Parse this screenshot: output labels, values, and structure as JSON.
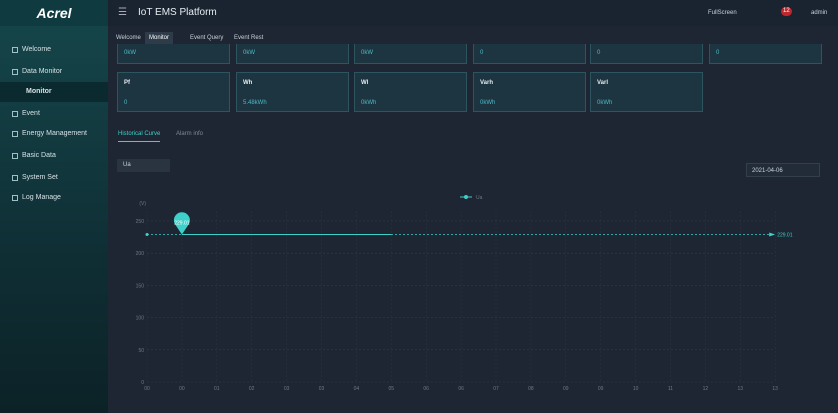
{
  "sidebar": {
    "logo": "Acrel",
    "menu": [
      "Welcome",
      "Data Monitor",
      "Monitor",
      "Event",
      "Energy Management",
      "Basic Data",
      "System Set",
      "Log Manage"
    ]
  },
  "header": {
    "title": "IoT EMS Platform",
    "fullscreen": "FullScreen",
    "badge": "12",
    "user": "admin"
  },
  "tabs": [
    "Welcome",
    "Monitor",
    "Event Query",
    "Event Rest"
  ],
  "cards_top": [
    "0kW",
    "0kW",
    "0kW",
    "0",
    "0",
    "0"
  ],
  "cards": [
    {
      "label": "Pf",
      "value": "0"
    },
    {
      "label": "Wh",
      "value": "5.48kWh"
    },
    {
      "label": "Wl",
      "value": "0kWh"
    },
    {
      "label": "Varh",
      "value": "0kWh"
    },
    {
      "label": "Varl",
      "value": "0kWh"
    }
  ],
  "panel_tabs": [
    "Historical Curve",
    "Alarm info"
  ],
  "select": "Ua",
  "date": "2021-04-06",
  "chart_data": {
    "type": "line",
    "y_label": "(V)",
    "categories": [
      "00",
      "00",
      "01",
      "02",
      "03",
      "03",
      "04",
      "05",
      "06",
      "06",
      "07",
      "08",
      "09",
      "09",
      "10",
      "11",
      "12",
      "13",
      "13"
    ],
    "series": [
      {
        "name": "Ua",
        "color": "#3fd0c9",
        "values": [
          null,
          229.01,
          229.01,
          229.01,
          229.01,
          229.01,
          229.01,
          229.01,
          null,
          null,
          null,
          null,
          null,
          null,
          null,
          null,
          null,
          null,
          null
        ]
      }
    ],
    "mark_point": 229.01,
    "mark_line": 229.01,
    "ylim": [
      0,
      250
    ],
    "yticks": [
      0,
      50,
      100,
      150,
      200,
      250
    ],
    "grid": true
  }
}
